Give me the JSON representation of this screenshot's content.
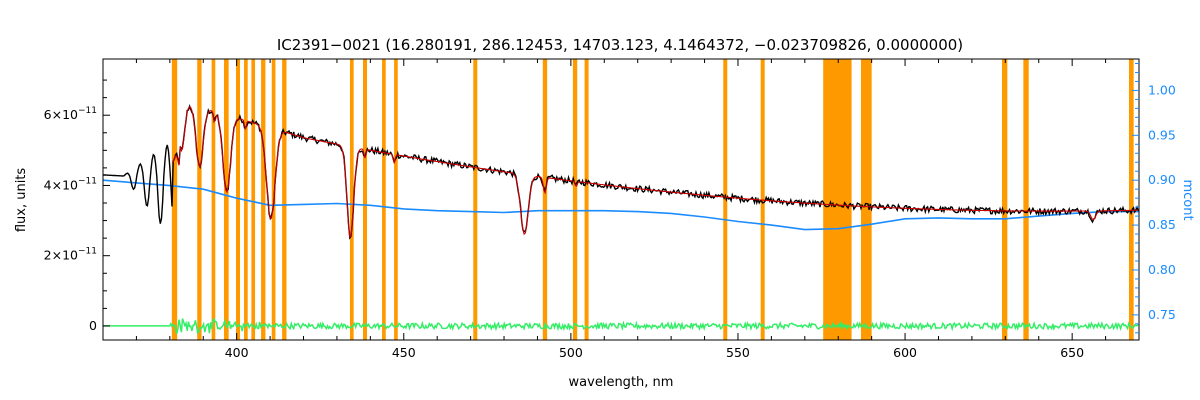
{
  "chart_data": {
    "type": "line",
    "title": "IC2391−0021    (16.280191, 286.12453, 14703.123, 4.1464372, −0.023709826, 0.0000000)",
    "xlabel": "wavelength, nm",
    "ylabel": "flux, units",
    "y2label": "mcont",
    "xlim": [
      360,
      670
    ],
    "ylim": [
      -4e-12,
      7.6e-11
    ],
    "y2lim": [
      0.722,
      1.035
    ],
    "x_ticks": [
      400,
      450,
      500,
      550,
      600,
      650
    ],
    "x_tick_labels": [
      "400",
      "450",
      "500",
      "550",
      "600",
      "650"
    ],
    "y_ticks": [
      0,
      2e-11,
      4e-11,
      6e-11
    ],
    "y_tick_labels": [
      {
        "mant": "0",
        "exp": ""
      },
      {
        "mant": "2×10",
        "exp": "−11"
      },
      {
        "mant": "4×10",
        "exp": "−11"
      },
      {
        "mant": "6×10",
        "exp": "−11"
      }
    ],
    "y2_ticks": [
      0.75,
      0.8,
      0.85,
      0.9,
      0.95,
      1.0
    ],
    "y2_tick_labels": [
      "0.75",
      "0.80",
      "0.85",
      "0.90",
      "0.95",
      "1.00"
    ],
    "masked_bands_nm": [
      [
        380.6,
        382.2
      ],
      [
        388.2,
        389.5
      ],
      [
        392.5,
        393.6
      ],
      [
        396.2,
        397.6
      ],
      [
        399.8,
        401.0
      ],
      [
        402.2,
        403.3
      ],
      [
        404.4,
        405.5
      ],
      [
        407.3,
        408.6
      ],
      [
        410.5,
        411.6
      ],
      [
        413.6,
        414.9
      ],
      [
        433.9,
        435.0
      ],
      [
        437.8,
        439.0
      ],
      [
        443.5,
        444.6
      ],
      [
        447.1,
        448.2
      ],
      [
        470.8,
        472.0
      ],
      [
        491.6,
        492.9
      ],
      [
        500.6,
        501.9
      ],
      [
        504.1,
        505.3
      ],
      [
        545.6,
        546.8
      ],
      [
        556.8,
        558.0
      ],
      [
        575.5,
        584.0
      ],
      [
        586.8,
        590.0
      ],
      [
        629.0,
        630.6
      ],
      [
        635.4,
        637.0
      ],
      [
        667.0,
        668.4
      ]
    ],
    "balmer_lines_nm": [
      383.5,
      388.9,
      397.0,
      410.2,
      434.0,
      486.1,
      656.3
    ],
    "minor_lines_nm": [
      393.4,
      402.6,
      438.4,
      447.1,
      492.2,
      501.6,
      588.0,
      630.0,
      636.4
    ],
    "series": [
      {
        "name": "",
        "role": "observed flux",
        "color": "#000000"
      },
      {
        "name": "",
        "role": "model fit",
        "color": "#cc0000"
      },
      {
        "name": "",
        "role": "residuals",
        "color": "#33ee66"
      },
      {
        "name": "",
        "role": "mcont continuum multiplier (right axis)",
        "color": "#1a8cff",
        "x": [
          360,
          380,
          390,
          400,
          410,
          420,
          430,
          440,
          450,
          460,
          470,
          480,
          490,
          500,
          510,
          520,
          530,
          540,
          550,
          560,
          570,
          580,
          590,
          600,
          610,
          620,
          630,
          640,
          650,
          660,
          670
        ],
        "y": [
          0.9,
          0.894,
          0.89,
          0.88,
          0.872,
          0.873,
          0.874,
          0.872,
          0.868,
          0.866,
          0.865,
          0.864,
          0.866,
          0.866,
          0.866,
          0.865,
          0.863,
          0.859,
          0.854,
          0.85,
          0.845,
          0.846,
          0.851,
          0.857,
          0.858,
          0.857,
          0.857,
          0.86,
          0.863,
          0.865,
          0.865
        ]
      }
    ],
    "grid": false,
    "legend": "none"
  },
  "colors": {
    "band": "#ff9900",
    "flux": "#000000",
    "model": "#cc0000",
    "residual": "#33ee66",
    "mcont": "#1a8cff",
    "highlight": "#ffee00"
  }
}
